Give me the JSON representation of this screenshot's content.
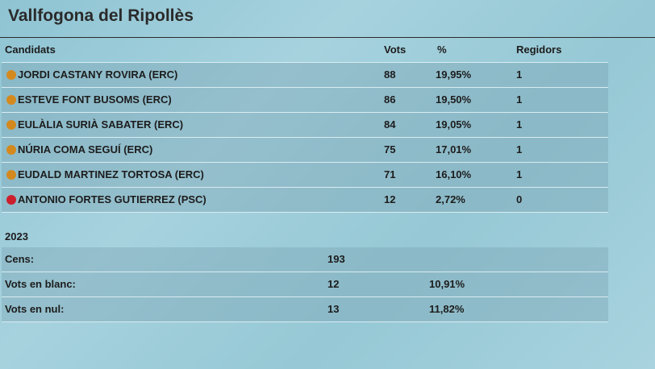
{
  "title": "Vallfogona del Ripollès",
  "columns": {
    "candidate": "Candidats",
    "votes": "Vots",
    "percent": "%",
    "seats": "Regidors"
  },
  "candidates": [
    {
      "name": "JORDI CASTANY ROVIRA (ERC)",
      "votes": "88",
      "percent": "19,95%",
      "seats": "1",
      "color": "#d4891e"
    },
    {
      "name": "ESTEVE FONT BUSOMS (ERC)",
      "votes": "86",
      "percent": "19,50%",
      "seats": "1",
      "color": "#d4891e"
    },
    {
      "name": "EULÀLIA SURIÀ SABATER (ERC)",
      "votes": "84",
      "percent": "19,05%",
      "seats": "1",
      "color": "#d4891e"
    },
    {
      "name": "NÚRIA COMA SEGUÍ (ERC)",
      "votes": "75",
      "percent": "17,01%",
      "seats": "1",
      "color": "#d4891e"
    },
    {
      "name": "EUDALD MARTINEZ TORTOSA (ERC)",
      "votes": "71",
      "percent": "16,10%",
      "seats": "1",
      "color": "#d4891e"
    },
    {
      "name": "ANTONIO FORTES GUTIERREZ (PSC)",
      "votes": "12",
      "percent": "2,72%",
      "seats": "0",
      "color": "#cc1f2d"
    }
  ],
  "summary": {
    "year": "2023",
    "rows": [
      {
        "label": "Cens:",
        "value": "193",
        "percent": ""
      },
      {
        "label": "Vots en blanc:",
        "value": "12",
        "percent": "10,91%"
      },
      {
        "label": "Vots en nul:",
        "value": "13",
        "percent": "11,82%"
      }
    ]
  }
}
